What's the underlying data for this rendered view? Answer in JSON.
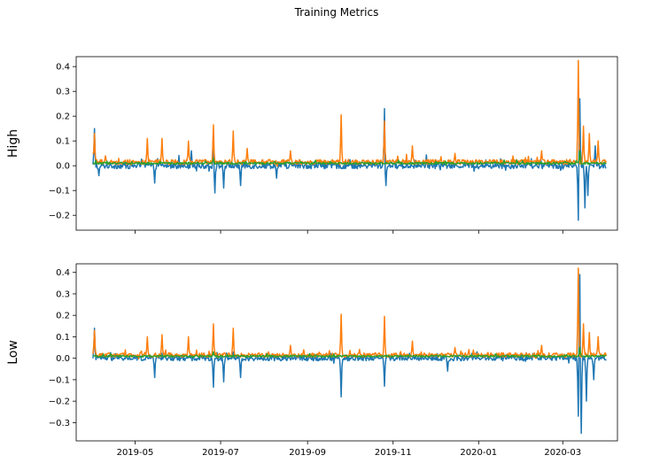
{
  "figure": {
    "title": "Training Metrics"
  },
  "colors": {
    "blue": "#1f77b4",
    "orange": "#ff7f0e",
    "green": "#2ca02c"
  },
  "chart_data": [
    {
      "type": "line",
      "ylabel": "High",
      "xlabel": "",
      "xlim": [
        "2019-03-20",
        "2020-04-09"
      ],
      "ylim": [
        -0.26,
        0.44
      ],
      "yticks": [
        -0.2,
        -0.1,
        0.0,
        0.1,
        0.2,
        0.3,
        0.4
      ],
      "ytick_labels": [
        "−0.2",
        "−0.1",
        "0.0",
        "0.1",
        "0.2",
        "0.3",
        "0.4"
      ],
      "xticks": [
        "2019-05-01",
        "2019-07-01",
        "2019-09-01",
        "2019-11-01",
        "2020-01-01",
        "2020-03-01"
      ],
      "xtick_labels": [],
      "grid": false,
      "legend": "none",
      "x_range": [
        "2019-04-01",
        "2020-04-01"
      ],
      "series": [
        {
          "color": "blue",
          "baseline": 0.0,
          "noise": 0.012,
          "events": [
            {
              "x": "2019-04-02",
              "y": 0.15
            },
            {
              "x": "2019-04-05",
              "y": -0.04
            },
            {
              "x": "2019-05-15",
              "y": -0.07
            },
            {
              "x": "2019-06-10",
              "y": 0.06
            },
            {
              "x": "2019-06-26",
              "y": 0.13
            },
            {
              "x": "2019-06-27",
              "y": -0.11
            },
            {
              "x": "2019-07-03",
              "y": -0.09
            },
            {
              "x": "2019-07-15",
              "y": -0.08
            },
            {
              "x": "2019-08-10",
              "y": -0.05
            },
            {
              "x": "2019-10-26",
              "y": 0.23
            },
            {
              "x": "2019-10-27",
              "y": -0.08
            },
            {
              "x": "2020-03-12",
              "y": -0.22
            },
            {
              "x": "2020-03-13",
              "y": 0.27
            },
            {
              "x": "2020-03-17",
              "y": -0.17
            },
            {
              "x": "2020-03-19",
              "y": -0.12
            },
            {
              "x": "2020-03-24",
              "y": 0.08
            }
          ]
        },
        {
          "color": "orange",
          "baseline": 0.015,
          "noise": 0.01,
          "events": [
            {
              "x": "2019-04-02",
              "y": 0.13
            },
            {
              "x": "2019-04-10",
              "y": 0.04
            },
            {
              "x": "2019-05-10",
              "y": 0.11
            },
            {
              "x": "2019-05-20",
              "y": 0.11
            },
            {
              "x": "2019-06-08",
              "y": 0.1
            },
            {
              "x": "2019-06-26",
              "y": 0.165
            },
            {
              "x": "2019-07-10",
              "y": 0.14
            },
            {
              "x": "2019-07-20",
              "y": 0.07
            },
            {
              "x": "2019-08-20",
              "y": 0.06
            },
            {
              "x": "2019-09-25",
              "y": 0.205
            },
            {
              "x": "2019-10-26",
              "y": 0.18
            },
            {
              "x": "2019-11-15",
              "y": 0.08
            },
            {
              "x": "2019-12-15",
              "y": 0.05
            },
            {
              "x": "2020-02-15",
              "y": 0.06
            },
            {
              "x": "2020-03-12",
              "y": 0.425
            },
            {
              "x": "2020-03-16",
              "y": 0.16
            },
            {
              "x": "2020-03-20",
              "y": 0.13
            },
            {
              "x": "2020-03-26",
              "y": 0.1
            }
          ]
        },
        {
          "color": "green",
          "baseline": 0.01,
          "noise": 0.004,
          "events": [
            {
              "x": "2019-06-26",
              "y": 0.03
            },
            {
              "x": "2020-03-13",
              "y": 0.06
            }
          ]
        }
      ]
    },
    {
      "type": "line",
      "ylabel": "Low",
      "xlabel": "",
      "xlim": [
        "2019-03-20",
        "2020-04-09"
      ],
      "ylim": [
        -0.385,
        0.44
      ],
      "yticks": [
        -0.3,
        -0.2,
        -0.1,
        0.0,
        0.1,
        0.2,
        0.3,
        0.4
      ],
      "ytick_labels": [
        "−0.3",
        "−0.2",
        "−0.1",
        "0.0",
        "0.1",
        "0.2",
        "0.3",
        "0.4"
      ],
      "xticks": [
        "2019-05-01",
        "2019-07-01",
        "2019-09-01",
        "2019-11-01",
        "2020-01-01",
        "2020-03-01"
      ],
      "xtick_labels": [
        "2019-05",
        "2019-07",
        "2019-09",
        "2019-11",
        "2020-01",
        "2020-03"
      ],
      "grid": false,
      "legend": "none",
      "x_range": [
        "2019-04-01",
        "2020-04-01"
      ],
      "series": [
        {
          "color": "blue",
          "baseline": 0.0,
          "noise": 0.012,
          "events": [
            {
              "x": "2019-04-02",
              "y": 0.14
            },
            {
              "x": "2019-05-15",
              "y": -0.09
            },
            {
              "x": "2019-06-26",
              "y": -0.135
            },
            {
              "x": "2019-07-03",
              "y": -0.11
            },
            {
              "x": "2019-07-15",
              "y": -0.09
            },
            {
              "x": "2019-09-25",
              "y": -0.18
            },
            {
              "x": "2019-10-26",
              "y": -0.13
            },
            {
              "x": "2019-12-10",
              "y": -0.06
            },
            {
              "x": "2020-03-12",
              "y": -0.27
            },
            {
              "x": "2020-03-13",
              "y": 0.39
            },
            {
              "x": "2020-03-14",
              "y": -0.35
            },
            {
              "x": "2020-03-18",
              "y": -0.2
            },
            {
              "x": "2020-03-23",
              "y": -0.1
            }
          ]
        },
        {
          "color": "orange",
          "baseline": 0.015,
          "noise": 0.01,
          "events": [
            {
              "x": "2019-04-02",
              "y": 0.13
            },
            {
              "x": "2019-05-10",
              "y": 0.1
            },
            {
              "x": "2019-05-20",
              "y": 0.11
            },
            {
              "x": "2019-06-08",
              "y": 0.1
            },
            {
              "x": "2019-06-26",
              "y": 0.16
            },
            {
              "x": "2019-07-10",
              "y": 0.14
            },
            {
              "x": "2019-08-20",
              "y": 0.06
            },
            {
              "x": "2019-09-25",
              "y": 0.205
            },
            {
              "x": "2019-10-26",
              "y": 0.195
            },
            {
              "x": "2019-11-15",
              "y": 0.08
            },
            {
              "x": "2019-12-15",
              "y": 0.05
            },
            {
              "x": "2020-02-15",
              "y": 0.06
            },
            {
              "x": "2020-03-12",
              "y": 0.42
            },
            {
              "x": "2020-03-16",
              "y": 0.16
            },
            {
              "x": "2020-03-20",
              "y": 0.12
            },
            {
              "x": "2020-03-26",
              "y": 0.1
            }
          ]
        },
        {
          "color": "green",
          "baseline": 0.01,
          "noise": 0.004,
          "events": [
            {
              "x": "2019-06-26",
              "y": 0.03
            },
            {
              "x": "2020-03-13",
              "y": 0.05
            }
          ]
        }
      ]
    }
  ]
}
